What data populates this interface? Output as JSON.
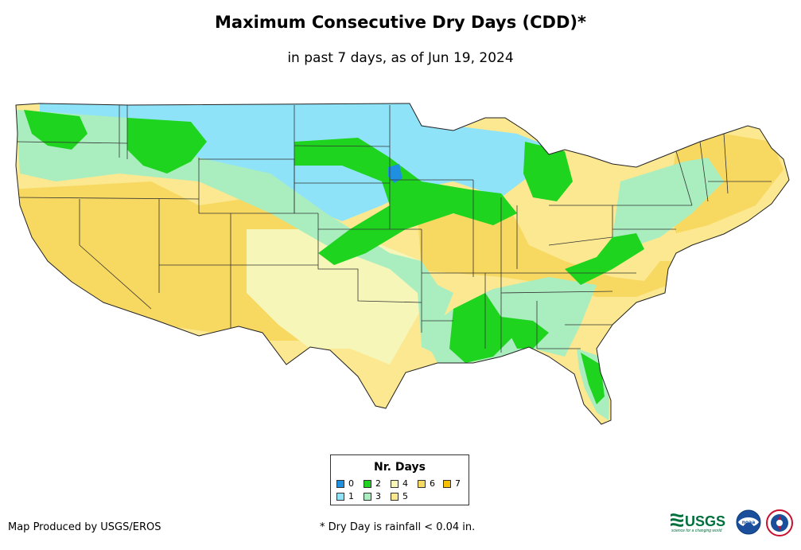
{
  "header": {
    "title": "Maximum Consecutive Dry Days (CDD)*",
    "subtitle": "in past 7 days, as of Jun 19, 2024"
  },
  "legend": {
    "title": "Nr. Days",
    "items": [
      {
        "label": "0",
        "color": "#1f8fe0"
      },
      {
        "label": "1",
        "color": "#8fe3f8"
      },
      {
        "label": "2",
        "color": "#1ed41e"
      },
      {
        "label": "3",
        "color": "#aaeec0"
      },
      {
        "label": "4",
        "color": "#f6f6b8"
      },
      {
        "label": "5",
        "color": "#fbe890"
      },
      {
        "label": "6",
        "color": "#f7d860"
      },
      {
        "label": "7",
        "color": "#f5c000"
      }
    ]
  },
  "footer": {
    "credit": "Map Produced by USGS/EROS",
    "footnote": "* Dry Day is rainfall < 0.04 in.",
    "logos": {
      "usgs_text": "USGS",
      "usgs_tagline": "science for a changing world",
      "noaa_text": "noaa",
      "nws_icon": "nws-seal-icon"
    }
  }
}
